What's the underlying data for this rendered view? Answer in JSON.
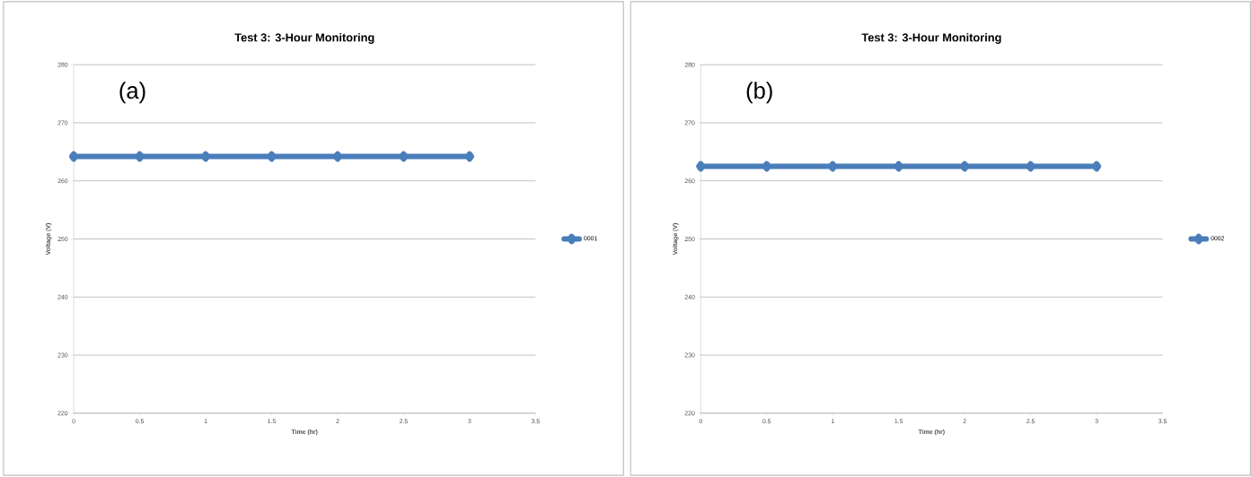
{
  "chart_data": [
    {
      "type": "line",
      "title": "Test 3: 3-Hour Monitoring",
      "xlabel": "Time (hr)",
      "ylabel": "Voltage (V)",
      "annotations": [
        "(a)"
      ],
      "series": [
        {
          "name": "0001",
          "color": "#4a7ebb",
          "x": [
            0,
            0.5,
            1,
            1.5,
            2,
            2.5,
            3
          ],
          "values": [
            264.2,
            264.2,
            264.2,
            264.2,
            264.2,
            264.2,
            264.2
          ]
        }
      ],
      "xlim": [
        0,
        3.5
      ],
      "xticks": [
        0,
        0.5,
        1,
        1.5,
        2,
        2.5,
        3,
        3.5
      ],
      "ylim": [
        220,
        280
      ],
      "yticks": [
        220,
        230,
        240,
        250,
        260,
        270,
        280
      ],
      "grid": "y",
      "legend": "right",
      "marker": "diamond"
    },
    {
      "type": "line",
      "title": "Test 3: 3-Hour Monitoring",
      "xlabel": "Time (hr)",
      "ylabel": "Voltage (V)",
      "annotations": [
        "(b)"
      ],
      "series": [
        {
          "name": "0002",
          "color": "#4a7ebb",
          "x": [
            0,
            0.5,
            1,
            1.5,
            2,
            2.5,
            3
          ],
          "values": [
            262.5,
            262.5,
            262.5,
            262.5,
            262.5,
            262.5,
            262.5
          ]
        }
      ],
      "xlim": [
        0,
        3.5
      ],
      "xticks": [
        0,
        0.5,
        1,
        1.5,
        2,
        2.5,
        3,
        3.5
      ],
      "ylim": [
        220,
        280
      ],
      "yticks": [
        220,
        230,
        240,
        250,
        260,
        270,
        280
      ],
      "grid": "y",
      "legend": "right",
      "marker": "diamond"
    }
  ]
}
